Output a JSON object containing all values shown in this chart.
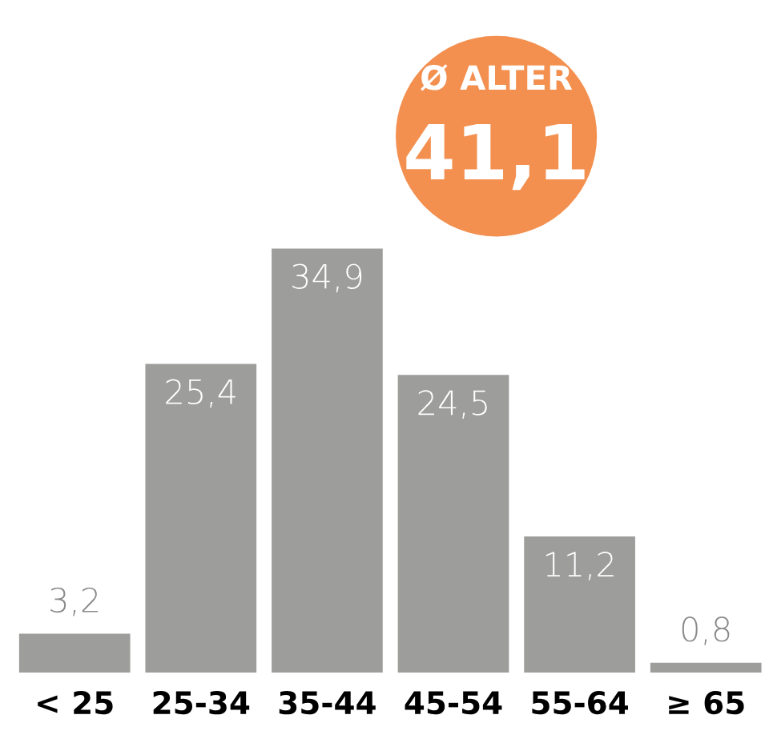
{
  "chart_data": {
    "type": "bar",
    "categories": [
      "< 25",
      "25-34",
      "35-44",
      "45-54",
      "55-64",
      "≥ 65"
    ],
    "values": [
      3.2,
      25.4,
      34.9,
      24.5,
      11.2,
      0.8
    ],
    "value_labels": [
      "3,2",
      "25,4",
      "34,9",
      "24,5",
      "11,2",
      "0,8"
    ],
    "color": "#9d9d9c",
    "annotations": [
      "Ø ALTER",
      "41,1"
    ],
    "grid": false,
    "legend": false
  }
}
